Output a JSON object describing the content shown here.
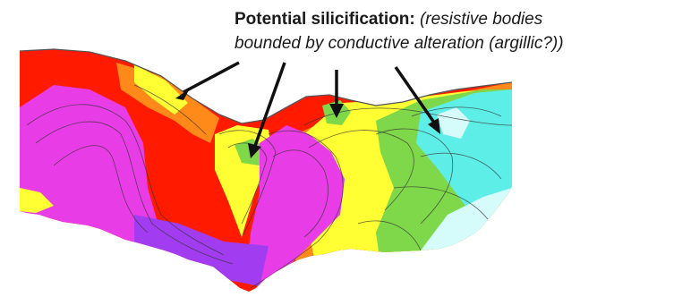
{
  "annotation": {
    "title": "Potential silicification:",
    "subtitle_line1": "(resistive bodies",
    "subtitle_line2": "bounded by conductive alteration (argillic?))"
  },
  "palette": {
    "surface_line": "#555555",
    "contour_line": "#333333",
    "arrow": "#111111",
    "magenta": "#e83ce6",
    "violet": "#a23cf0",
    "red": "#ff1a00",
    "orange": "#ff8a1a",
    "yellow": "#ffff33",
    "green": "#7fd84a",
    "cyan": "#5eeee8",
    "pale_cyan": "#d6fbfb"
  }
}
